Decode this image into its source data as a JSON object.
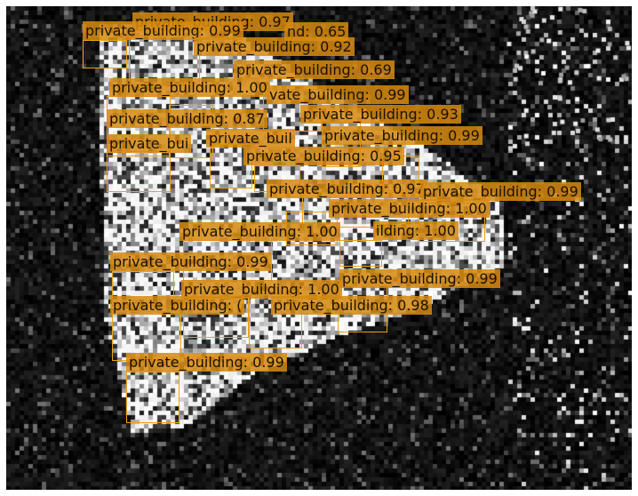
{
  "image": {
    "content": "satellite-style grayscale scene with building detections",
    "accent_color": "#d68910",
    "box_color": "#e8a317"
  },
  "detections": [
    {
      "label": "private_building: 0.97"
    },
    {
      "label": "private_building: 0.99"
    },
    {
      "label": "nd: 0.65"
    },
    {
      "label": "private_building: 0.92"
    },
    {
      "label": "private_building: 0.69"
    },
    {
      "label": "private_building: 1.00"
    },
    {
      "label": "vate_building: 0.99"
    },
    {
      "label": "private_building: 0.87"
    },
    {
      "label": "private_building: 0.93"
    },
    {
      "label": "private_bui"
    },
    {
      "label": "private_buil"
    },
    {
      "label": "private_building: 0.99"
    },
    {
      "label": "private_building: 0.95"
    },
    {
      "label": "private_building: 0.97"
    },
    {
      "label": "private_building: 0.99"
    },
    {
      "label": "private_building: 1.00"
    },
    {
      "label": "private_building: 1.00"
    },
    {
      "label": "ilding: 1.00"
    },
    {
      "label": "private_building: 0.99"
    },
    {
      "label": "private_building: 0.99"
    },
    {
      "label": "private_building: 1.00"
    },
    {
      "label": "private_building: ("
    },
    {
      "label": "private_building: 0.98"
    },
    {
      "label": "private_building: 0.99"
    }
  ]
}
